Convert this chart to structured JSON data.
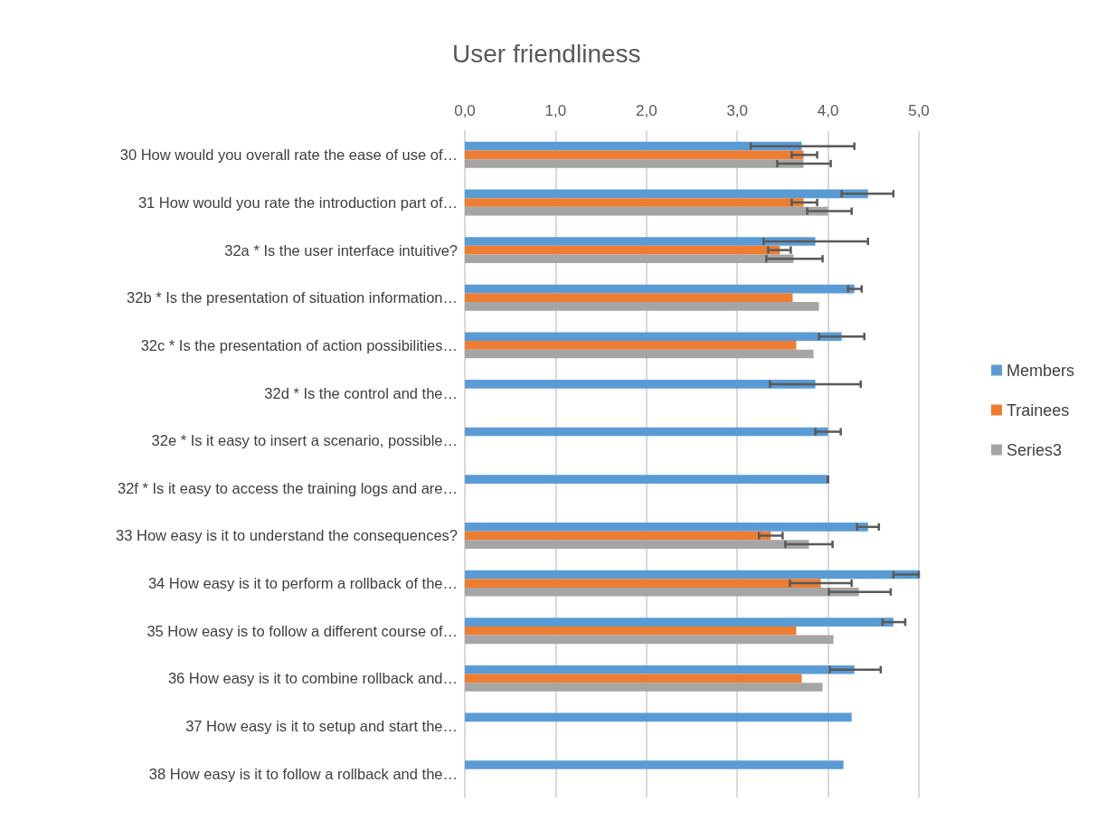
{
  "chart_data": {
    "type": "bar",
    "orientation": "horizontal",
    "title": "User friendliness",
    "categories": [
      "30 How would you overall rate the ease of use of…",
      "31 How would you rate the introduction part of…",
      "32a * Is the user interface intuitive?",
      "32b * Is the presentation of situation information…",
      "32c * Is the presentation of action possibilities…",
      "32d * Is the control and the…",
      "32e * Is it easy to insert a scenario, possible…",
      "32f * Is it easy to access the training logs and are…",
      "33 How easy is it to understand the consequences?",
      "34 How easy is it to perform a rollback of the…",
      "35 How easy is to follow a different course of…",
      "36 How easy is it to combine rollback and…",
      "37 How easy is it to setup and start the…",
      "38 How easy is it to follow a rollback and the…"
    ],
    "series": [
      {
        "name": "Members",
        "color": "#5b9bd5",
        "values": [
          3.71,
          4.44,
          3.86,
          4.29,
          4.15,
          3.86,
          4.0,
          4.0,
          4.44,
          5.0,
          4.72,
          4.29,
          4.26,
          4.17
        ],
        "errors": [
          [
            3.15,
            4.29
          ],
          [
            4.15,
            4.72
          ],
          [
            3.29,
            4.44
          ],
          [
            4.22,
            4.37
          ],
          [
            3.9,
            4.4
          ],
          [
            3.36,
            4.36
          ],
          [
            3.86,
            4.14
          ],
          [
            4.0,
            4.0
          ],
          [
            4.32,
            4.56
          ],
          [
            4.72,
            5.0
          ],
          [
            4.6,
            4.85
          ],
          [
            4.02,
            4.58
          ],
          null,
          null
        ]
      },
      {
        "name": "Trainees",
        "color": "#ed7d31",
        "values": [
          3.73,
          3.73,
          3.47,
          3.61,
          3.65,
          null,
          null,
          null,
          3.37,
          3.92,
          3.65,
          3.71,
          null,
          null
        ],
        "errors": [
          [
            3.6,
            3.88
          ],
          [
            3.6,
            3.88
          ],
          [
            3.34,
            3.59
          ],
          null,
          null,
          null,
          null,
          null,
          [
            3.24,
            3.5
          ],
          [
            3.58,
            4.26
          ],
          null,
          null,
          null,
          null
        ]
      },
      {
        "name": "Series3",
        "color": "#a5a5a5",
        "values": [
          3.73,
          4.0,
          3.62,
          3.9,
          3.84,
          null,
          null,
          null,
          3.79,
          4.34,
          4.06,
          3.94,
          null,
          null
        ],
        "errors": [
          [
            3.44,
            4.03
          ],
          [
            3.77,
            4.26
          ],
          [
            3.32,
            3.94
          ],
          null,
          null,
          null,
          null,
          null,
          [
            3.53,
            4.05
          ],
          [
            4.01,
            4.69
          ],
          null,
          null,
          null,
          null
        ]
      }
    ],
    "xlim": [
      0,
      5
    ],
    "xticks": [
      {
        "value": 0,
        "label": "0,0"
      },
      {
        "value": 1,
        "label": "1,0"
      },
      {
        "value": 2,
        "label": "2,0"
      },
      {
        "value": 3,
        "label": "3,0"
      },
      {
        "value": 4,
        "label": "4,0"
      },
      {
        "value": 5,
        "label": "5,0"
      }
    ],
    "grid": "x",
    "legend": "right"
  }
}
